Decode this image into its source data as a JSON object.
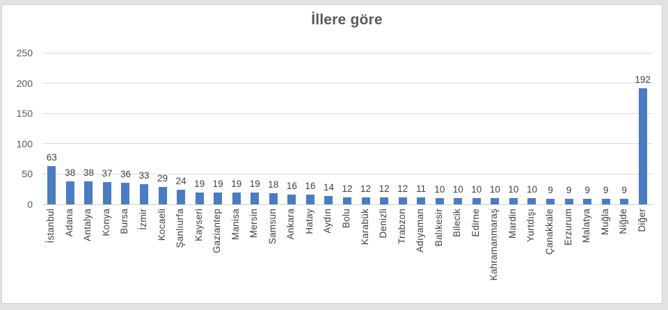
{
  "page": {
    "background_color": "#e2e2e2",
    "chart_background_color": "#ffffff",
    "chart_border_color": "#d2d2d2"
  },
  "chart": {
    "title": "İllere göre",
    "title_color": "#595959",
    "bar_color": "#4a7cc2",
    "gridline_color": "#d9d9d9",
    "axis_line_color": "#d0d0d0",
    "tick_label_color": "#595959",
    "data_label_color": "#404040"
  },
  "chart_data": {
    "type": "bar",
    "title": "İllere göre",
    "categories": [
      "İstanbul",
      "Adana",
      "Antalya",
      "Konya",
      "Bursa",
      "İzmir",
      "Kocaeli",
      "Şanlıurfa",
      "Kayseri",
      "Gaziantep",
      "Manisa",
      "Mersin",
      "Samsun",
      "Ankara",
      "Hatay",
      "Aydın",
      "Bolu",
      "Karabük",
      "Denizli",
      "Trabzon",
      "Adıyaman",
      "Balıkesir",
      "Bilecik",
      "Edirne",
      "Kahramanmaraş",
      "Mardin",
      "Yurtdışı",
      "Çanakkale",
      "Erzurum",
      "Malatya",
      "Muğla",
      "Niğde",
      "Diğer"
    ],
    "values": [
      63,
      38,
      38,
      37,
      36,
      33,
      29,
      24,
      19,
      19,
      19,
      19,
      18,
      16,
      16,
      14,
      12,
      12,
      12,
      12,
      11,
      10,
      10,
      10,
      10,
      10,
      10,
      9,
      9,
      9,
      9,
      9,
      192
    ],
    "xlabel": "",
    "ylabel": "",
    "ylim": [
      0,
      250
    ],
    "yticks": [
      0,
      50,
      100,
      150,
      200,
      250
    ],
    "grid": true,
    "legend": false,
    "data_labels": true,
    "category_labels_rotation_deg": 90
  }
}
